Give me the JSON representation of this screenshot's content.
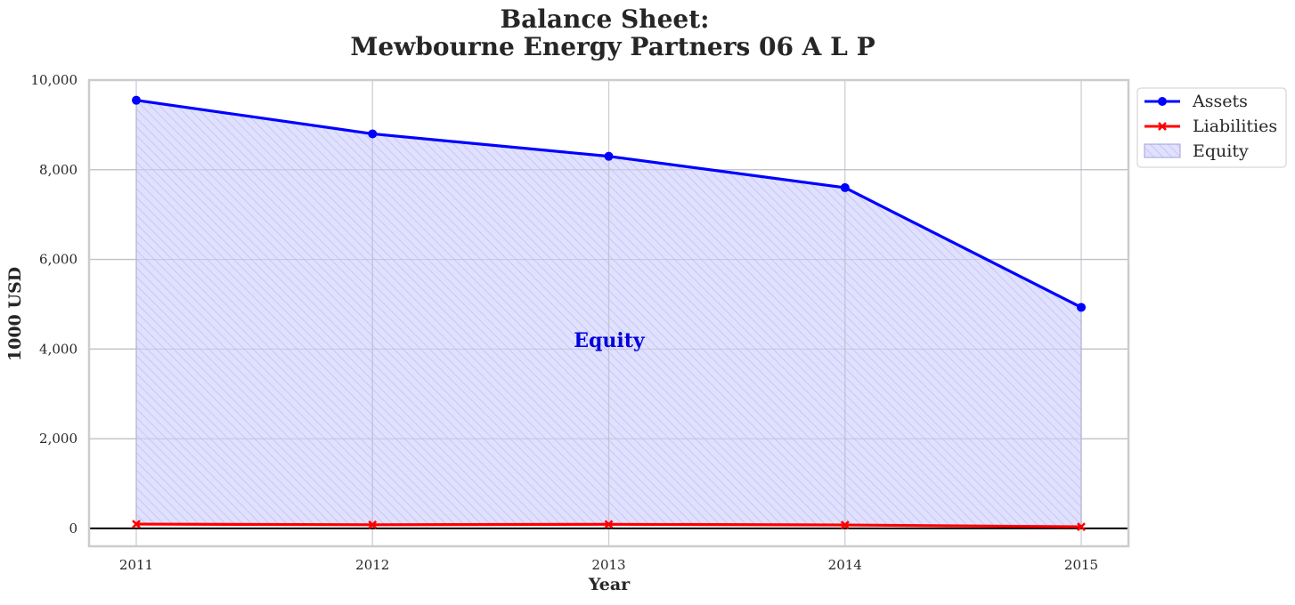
{
  "chart_data": {
    "type": "area",
    "title_line1": "Balance Sheet:",
    "title_line2": "Mewbourne Energy Partners 06 A L P",
    "xlabel": "Year",
    "ylabel": "1000 USD",
    "categories": [
      "2011",
      "2012",
      "2013",
      "2014",
      "2015"
    ],
    "ylim": [
      -400,
      10000
    ],
    "yticks": [
      0,
      2000,
      4000,
      6000,
      8000,
      10000
    ],
    "ytick_labels": [
      "0",
      "2,000",
      "4,000",
      "6,000",
      "8,000",
      "10,000"
    ],
    "grid": true,
    "legend_position": "outside-top-right",
    "series": [
      {
        "name": "Assets",
        "values": [
          9550,
          8800,
          8300,
          7600,
          4930
        ],
        "color": "#0000ff",
        "marker": "circle"
      },
      {
        "name": "Liabilities",
        "values": [
          95,
          80,
          90,
          75,
          35
        ],
        "color": "#ff0000",
        "marker": "x"
      }
    ],
    "area": {
      "name": "Equity",
      "fill_color": "#e0e0ff",
      "hatch_color": "#c8c8f0",
      "edge_color": "#a0a0d8"
    },
    "annotation": {
      "text": "Equity",
      "color": "#0000dd"
    },
    "colors": {
      "grid": "#cccccc",
      "zero_line": "#000000",
      "axes_border": "#cccccc",
      "text": "#262626"
    }
  }
}
